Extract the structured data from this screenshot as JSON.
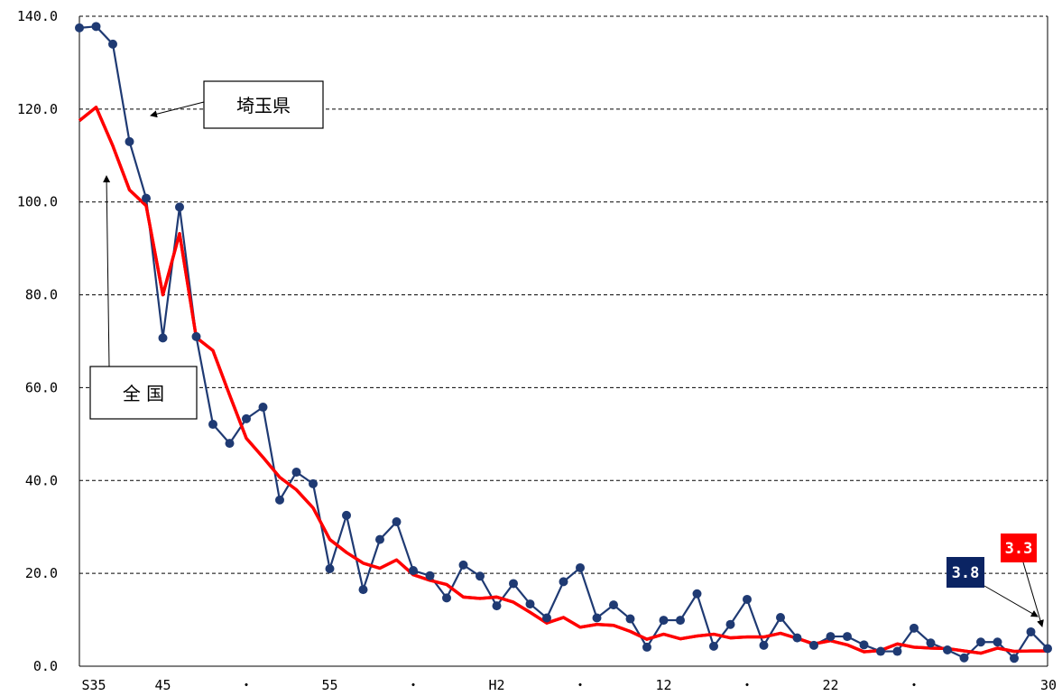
{
  "chart_data": {
    "type": "line",
    "ylim": [
      0,
      140
    ],
    "y_ticks": [
      "0.0",
      "20.0",
      "40.0",
      "60.0",
      "80.0",
      "100.0",
      "120.0",
      "140.0"
    ],
    "x_tick_labels": [
      "S35",
      "45",
      "・",
      "55",
      "・",
      "H2",
      "・",
      "12",
      "・",
      "22",
      "・",
      "30"
    ],
    "grid": "horizontal dashed",
    "series": [
      {
        "name": "埼玉県",
        "color": "#1f3a73",
        "marker": "circle",
        "values": [
          137.5,
          137.8,
          134.0,
          113.0,
          100.8,
          70.7,
          98.9,
          71.0,
          52.1,
          48.0,
          53.3,
          55.8,
          35.8,
          41.8,
          39.3,
          21.0,
          32.5,
          16.5,
          27.3,
          31.1,
          20.6,
          19.5,
          14.7,
          21.8,
          19.4,
          13.0,
          17.8,
          13.4,
          10.4,
          18.2,
          21.2,
          10.4,
          13.2,
          10.2,
          4.1,
          9.9,
          9.9,
          15.6,
          4.3,
          9.0,
          14.4,
          4.5,
          10.5,
          6.1,
          4.5,
          6.4,
          6.4,
          4.6,
          3.2,
          3.2,
          8.2,
          5.0,
          3.5,
          1.8,
          5.2,
          5.2,
          1.7,
          7.4,
          3.8
        ]
      },
      {
        "name": "全 国",
        "color": "#ff0000",
        "marker": "none",
        "values": [
          117.5,
          120.4,
          112.1,
          102.6,
          99.2,
          80.0,
          93.2,
          70.8,
          68.0,
          58.4,
          49.1,
          45.0,
          40.7,
          38.0,
          34.1,
          27.3,
          24.5,
          22.2,
          21.1,
          22.9,
          19.7,
          18.5,
          17.6,
          14.9,
          14.6,
          14.9,
          13.8,
          11.6,
          9.3,
          10.5,
          8.4,
          9.0,
          8.8,
          7.5,
          5.8,
          6.9,
          5.9,
          6.5,
          6.9,
          6.1,
          6.3,
          6.3,
          7.1,
          6.0,
          4.8,
          5.5,
          4.6,
          3.1,
          3.4,
          4.8,
          4.1,
          3.9,
          3.8,
          3.3,
          2.8,
          3.9,
          3.2,
          3.3,
          3.3
        ]
      }
    ],
    "callouts": {
      "saitama_box": "埼玉県",
      "national_box": "全 国",
      "saitama_last": "3.8",
      "national_last": "3.3"
    }
  }
}
